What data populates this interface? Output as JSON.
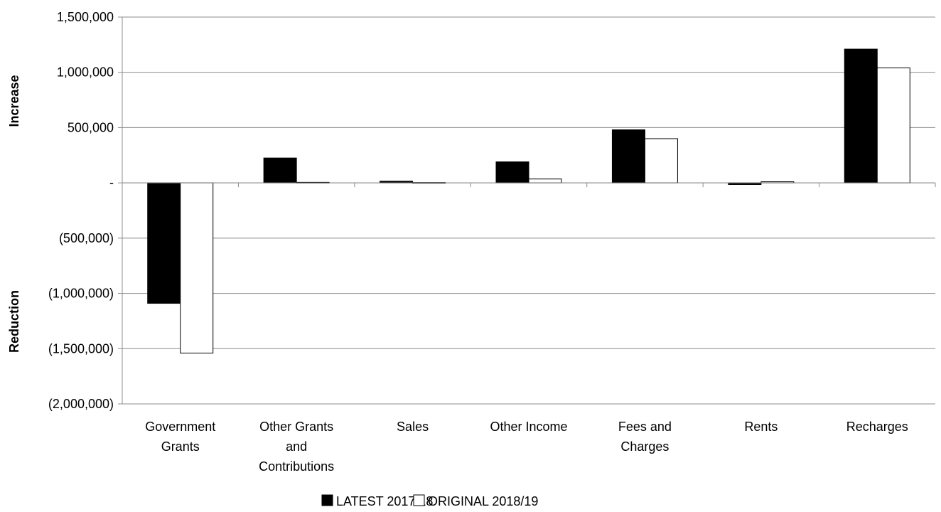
{
  "chart_data": {
    "type": "bar",
    "categories": [
      [
        "Government",
        "Grants"
      ],
      [
        "Other Grants",
        "and",
        "Contributions"
      ],
      [
        "Sales"
      ],
      [
        "Other Income"
      ],
      [
        "Fees and",
        "Charges"
      ],
      [
        "Rents"
      ],
      [
        "Recharges"
      ]
    ],
    "series": [
      {
        "name": "LATEST 2017/18",
        "color": "#000000",
        "values": [
          -1090000,
          225000,
          15000,
          190000,
          480000,
          -15000,
          1210000
        ]
      },
      {
        "name": "ORIGINAL 2018/19",
        "color": "#ffffff",
        "values": [
          -1540000,
          5000,
          3000,
          35000,
          400000,
          10000,
          1040000
        ]
      }
    ],
    "ylim": [
      -2000000,
      1500000
    ],
    "yticks": [
      1500000,
      1000000,
      500000,
      0,
      -500000,
      -1000000,
      -1500000,
      -2000000
    ],
    "ytick_labels": [
      "1,500,000",
      "1,000,000",
      "500,000",
      "-",
      "(500,000)",
      "(1,000,000)",
      "(1,500,000)",
      "(2,000,000)"
    ],
    "ylabel_top": "Increase",
    "ylabel_bottom": "Reduction",
    "grid": true,
    "legend": "bottom"
  }
}
